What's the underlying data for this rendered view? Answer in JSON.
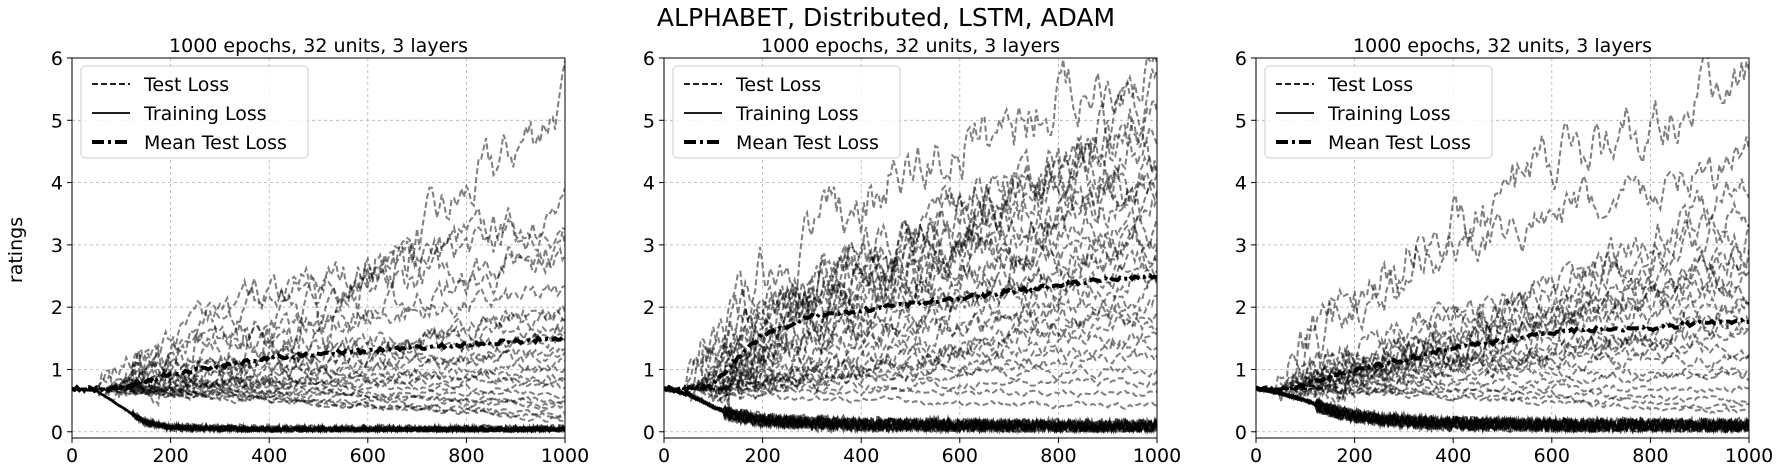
{
  "figure": {
    "suptitle": "ALPHABET, Distributed, LSTM, ADAM",
    "ylabel": "ratings"
  },
  "legend_labels": [
    "Test Loss",
    "Training Loss",
    "Mean Test Loss"
  ],
  "chart_data": [
    {
      "type": "line",
      "title": "1000 epochs, 32 units, 3 layers",
      "xlim": [
        0,
        1000
      ],
      "ylim": [
        -0.1,
        6
      ],
      "xticks": [
        0,
        200,
        400,
        600,
        800,
        1000
      ],
      "yticks": [
        0,
        1,
        2,
        3,
        4,
        5,
        6
      ],
      "grid": true,
      "legend_position": "top-left",
      "series": [
        {
          "name": "Mean Test Loss",
          "x": [
            0,
            60,
            100,
            150,
            200,
            300,
            400,
            500,
            600,
            700,
            800,
            900,
            1000
          ],
          "y": [
            0.69,
            0.69,
            0.7,
            0.82,
            0.92,
            1.05,
            1.18,
            1.25,
            1.3,
            1.35,
            1.4,
            1.45,
            1.5
          ]
        },
        {
          "name": "Training Loss",
          "x": [
            0,
            50,
            100,
            150,
            200,
            300,
            400,
            600,
            800,
            1000
          ],
          "y": [
            0.69,
            0.66,
            0.4,
            0.15,
            0.07,
            0.05,
            0.04,
            0.04,
            0.04,
            0.04
          ]
        }
      ],
      "test_run_finals": [
        5.4,
        3.5,
        3.3,
        3.0,
        2.8,
        2.2,
        2.0,
        1.9,
        1.7,
        1.6,
        1.5,
        1.3,
        1.2,
        1.1,
        1.0,
        0.9,
        0.8,
        0.7,
        0.6,
        0.5,
        0.45,
        0.4,
        0.3,
        0.25,
        0.2
      ]
    },
    {
      "type": "line",
      "title": "1000 epochs, 32 units, 3 layers",
      "xlim": [
        0,
        1000
      ],
      "ylim": [
        -0.1,
        6
      ],
      "xticks": [
        0,
        200,
        400,
        600,
        800,
        1000
      ],
      "yticks": [
        0,
        1,
        2,
        3,
        4,
        5,
        6
      ],
      "grid": true,
      "legend_position": "top-left",
      "series": [
        {
          "name": "Mean Test Loss",
          "x": [
            0,
            60,
            100,
            150,
            200,
            300,
            400,
            500,
            600,
            700,
            800,
            900,
            1000
          ],
          "y": [
            0.69,
            0.69,
            0.75,
            1.2,
            1.55,
            1.85,
            1.95,
            2.05,
            2.15,
            2.25,
            2.35,
            2.45,
            2.5
          ]
        },
        {
          "name": "Training Loss",
          "x": [
            0,
            50,
            100,
            150,
            200,
            300,
            400,
            600,
            800,
            1000
          ],
          "y": [
            0.69,
            0.6,
            0.4,
            0.25,
            0.18,
            0.14,
            0.12,
            0.1,
            0.09,
            0.08
          ]
        }
      ],
      "test_run_finals": [
        6.0,
        5.5,
        5.0,
        4.8,
        4.5,
        4.3,
        4.0,
        3.9,
        3.7,
        3.5,
        3.3,
        3.1,
        3.0,
        2.8,
        2.6,
        2.5,
        2.3,
        2.1,
        2.0,
        1.8,
        1.6,
        1.4,
        1.2,
        1.0,
        0.8,
        0.6,
        0.4
      ]
    },
    {
      "type": "line",
      "title": "1000 epochs, 32 units, 3 layers",
      "xlim": [
        0,
        1000
      ],
      "ylim": [
        -0.1,
        6
      ],
      "xticks": [
        0,
        200,
        400,
        600,
        800,
        1000
      ],
      "yticks": [
        0,
        1,
        2,
        3,
        4,
        5,
        6
      ],
      "grid": true,
      "legend_position": "top-left",
      "series": [
        {
          "name": "Mean Test Loss",
          "x": [
            0,
            60,
            100,
            150,
            200,
            300,
            400,
            500,
            600,
            700,
            800,
            900,
            1000
          ],
          "y": [
            0.69,
            0.69,
            0.75,
            0.9,
            1.0,
            1.15,
            1.35,
            1.45,
            1.6,
            1.65,
            1.65,
            1.75,
            1.78
          ]
        },
        {
          "name": "Training Loss",
          "x": [
            0,
            50,
            100,
            150,
            200,
            300,
            400,
            600,
            800,
            1000
          ],
          "y": [
            0.69,
            0.62,
            0.5,
            0.35,
            0.25,
            0.17,
            0.13,
            0.11,
            0.1,
            0.1
          ]
        }
      ],
      "test_run_finals": [
        5.8,
        4.3,
        3.9,
        3.6,
        3.2,
        3.0,
        2.8,
        2.6,
        2.4,
        2.3,
        2.1,
        2.0,
        1.8,
        1.7,
        1.5,
        1.3,
        1.2,
        1.0,
        0.9,
        0.7,
        0.5,
        0.4,
        0.3
      ]
    }
  ]
}
